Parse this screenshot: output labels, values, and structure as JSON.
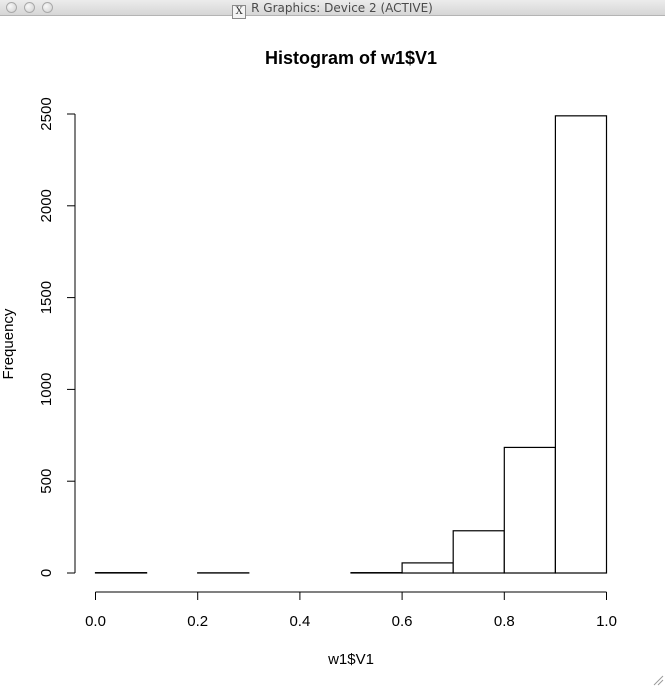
{
  "window": {
    "title": "R Graphics: Device 2 (ACTIVE)",
    "x11_icon_glyph": "X",
    "icons": [
      "close-button-icon",
      "minimize-button-icon",
      "zoom-button-icon",
      "x11-icon",
      "resize-grip-icon"
    ]
  },
  "chart_data": {
    "type": "bar",
    "title": "Histogram of w1$V1",
    "xlabel": "w1$V1",
    "ylabel": "Frequency",
    "bin_edges": [
      0.0,
      0.1,
      0.2,
      0.3,
      0.4,
      0.5,
      0.6,
      0.7,
      0.8,
      0.9,
      1.0
    ],
    "values": [
      2,
      0,
      1,
      0,
      0,
      2,
      55,
      230,
      684,
      2490
    ],
    "xlim": [
      0.0,
      1.0
    ],
    "ylim": [
      0,
      2500
    ],
    "x_ticks": [
      "0.0",
      "0.2",
      "0.4",
      "0.6",
      "0.8",
      "1.0"
    ],
    "y_ticks": [
      "0",
      "500",
      "1000",
      "1500",
      "2000",
      "2500"
    ],
    "grid": false,
    "bar_fill": "#ffffff",
    "bar_stroke": "#000000"
  }
}
